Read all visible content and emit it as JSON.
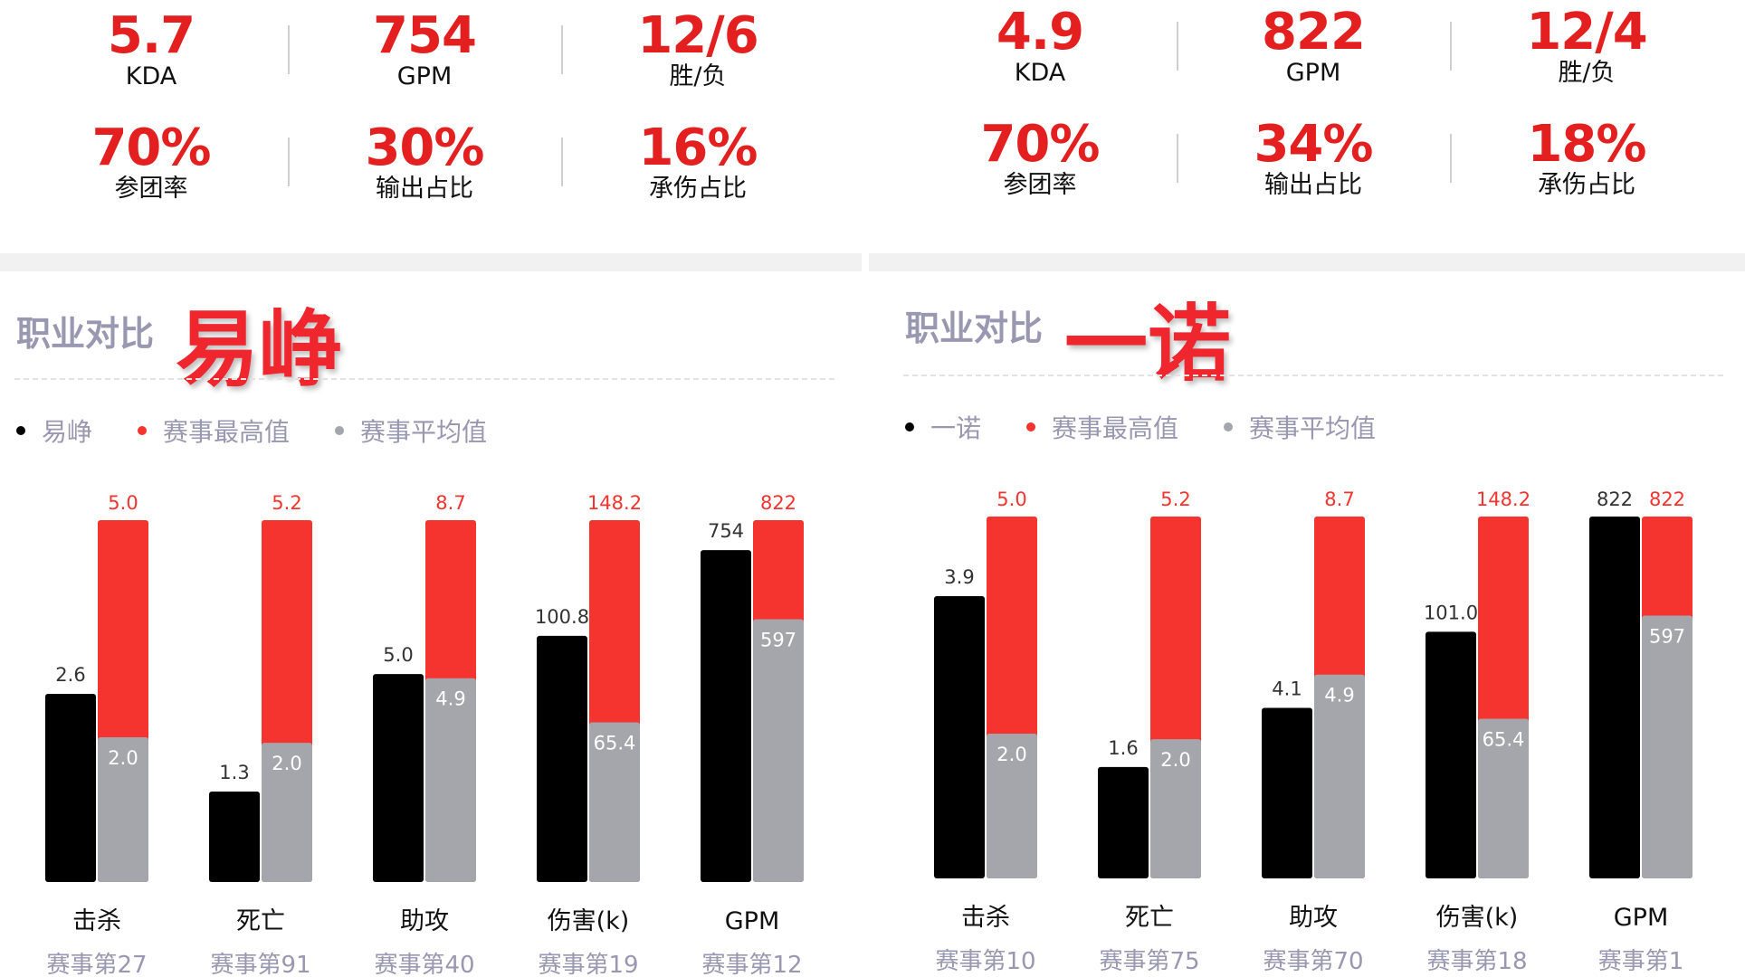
{
  "colors": {
    "player": "#000000",
    "max": "#f5332f",
    "avg": "#a4a6ab",
    "accent": "#e3201f",
    "sub": "#9a97b0"
  },
  "panels": [
    {
      "player_name": "易峥",
      "section_label": "职业对比",
      "stats": [
        {
          "value": "5.7",
          "label": "KDA"
        },
        {
          "value": "754",
          "label": "GPM"
        },
        {
          "value": "12/6",
          "label": "胜/负"
        },
        {
          "value": "70%",
          "label": "参团率"
        },
        {
          "value": "30%",
          "label": "输出占比"
        },
        {
          "value": "16%",
          "label": "承伤占比"
        }
      ],
      "legend": [
        "易峥",
        "赛事最高值",
        "赛事平均值"
      ]
    },
    {
      "player_name": "一诺",
      "section_label": "职业对比",
      "stats": [
        {
          "value": "4.9",
          "label": "KDA"
        },
        {
          "value": "822",
          "label": "GPM"
        },
        {
          "value": "12/4",
          "label": "胜/负"
        },
        {
          "value": "70%",
          "label": "参团率"
        },
        {
          "value": "34%",
          "label": "输出占比"
        },
        {
          "value": "18%",
          "label": "承伤占比"
        }
      ],
      "legend": [
        "一诺",
        "赛事最高值",
        "赛事平均值"
      ]
    }
  ],
  "chart_data": [
    {
      "type": "bar",
      "categories": [
        "击杀",
        "死亡",
        "助攻",
        "伤害(k)",
        "GPM"
      ],
      "ranks": [
        "赛事第27",
        "赛事第91",
        "赛事第40",
        "赛事第19",
        "赛事第12"
      ],
      "series": [
        {
          "name": "易峥",
          "values": [
            2.6,
            1.3,
            5.0,
            100.8,
            754
          ],
          "labels": [
            "2.6",
            "1.3",
            "5.0",
            "100.8",
            "754"
          ]
        },
        {
          "name": "赛事最高值",
          "values": [
            5.0,
            5.2,
            8.7,
            148.2,
            822
          ],
          "labels": [
            "5.0",
            "5.2",
            "8.7",
            "148.2",
            "822"
          ]
        },
        {
          "name": "赛事平均值",
          "values": [
            2.0,
            2.0,
            4.9,
            65.4,
            597
          ],
          "labels": [
            "2.0",
            "2.0",
            "4.9",
            "65.4",
            "597"
          ]
        }
      ]
    },
    {
      "type": "bar",
      "categories": [
        "击杀",
        "死亡",
        "助攻",
        "伤害(k)",
        "GPM"
      ],
      "ranks": [
        "赛事第10",
        "赛事第75",
        "赛事第70",
        "赛事第18",
        "赛事第1"
      ],
      "series": [
        {
          "name": "一诺",
          "values": [
            3.9,
            1.6,
            4.1,
            101.0,
            822
          ],
          "labels": [
            "3.9",
            "1.6",
            "4.1",
            "101.0",
            "822"
          ]
        },
        {
          "name": "赛事最高值",
          "values": [
            5.0,
            5.2,
            8.7,
            148.2,
            822
          ],
          "labels": [
            "5.0",
            "5.2",
            "8.7",
            "148.2",
            "822"
          ]
        },
        {
          "name": "赛事平均值",
          "values": [
            2.0,
            2.0,
            4.9,
            65.4,
            597
          ],
          "labels": [
            "2.0",
            "2.0",
            "4.9",
            "65.4",
            "597"
          ]
        }
      ]
    }
  ]
}
